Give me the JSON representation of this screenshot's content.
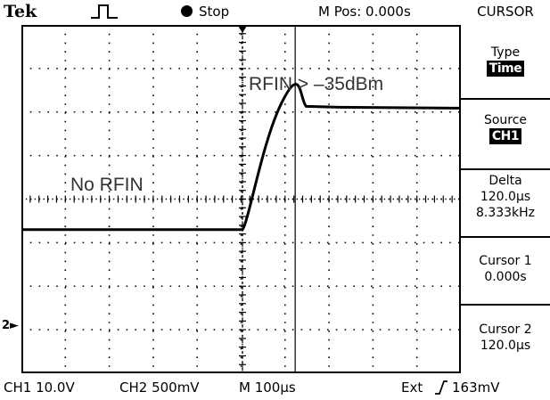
{
  "topbar": {
    "brand": "Tek",
    "run_state": "Stop",
    "m_pos": "M Pos: 0.000s",
    "menu_title": "CURSOR"
  },
  "annotations": {
    "high": "RFIN > –35dBm",
    "low": "No RFIN"
  },
  "channel_marker": "2",
  "menu": {
    "type_label": "Type",
    "type_value": "Time",
    "source_label": "Source",
    "source_value": "CH1",
    "delta_label": "Delta",
    "delta_time": "120.0µs",
    "delta_freq": "8.333kHz",
    "cursor1_label": "Cursor 1",
    "cursor1_value": "0.000s",
    "cursor2_label": "Cursor 2",
    "cursor2_value": "120.0µs"
  },
  "bottombar": {
    "ch1": "CH1  10.0V",
    "ch2": "CH2  500mV",
    "timebase": "M 100µs",
    "trigger_source": "Ext",
    "trigger_level": "163mV"
  },
  "waveform": {
    "time_per_div_us": 100,
    "trigger_time_us": 0,
    "cursor1_time_us": 0,
    "cursor2_time_us": 120,
    "baseline_level_div": -0.7,
    "settled_level_div": 2.15,
    "overshoot_level_div": 2.25
  }
}
